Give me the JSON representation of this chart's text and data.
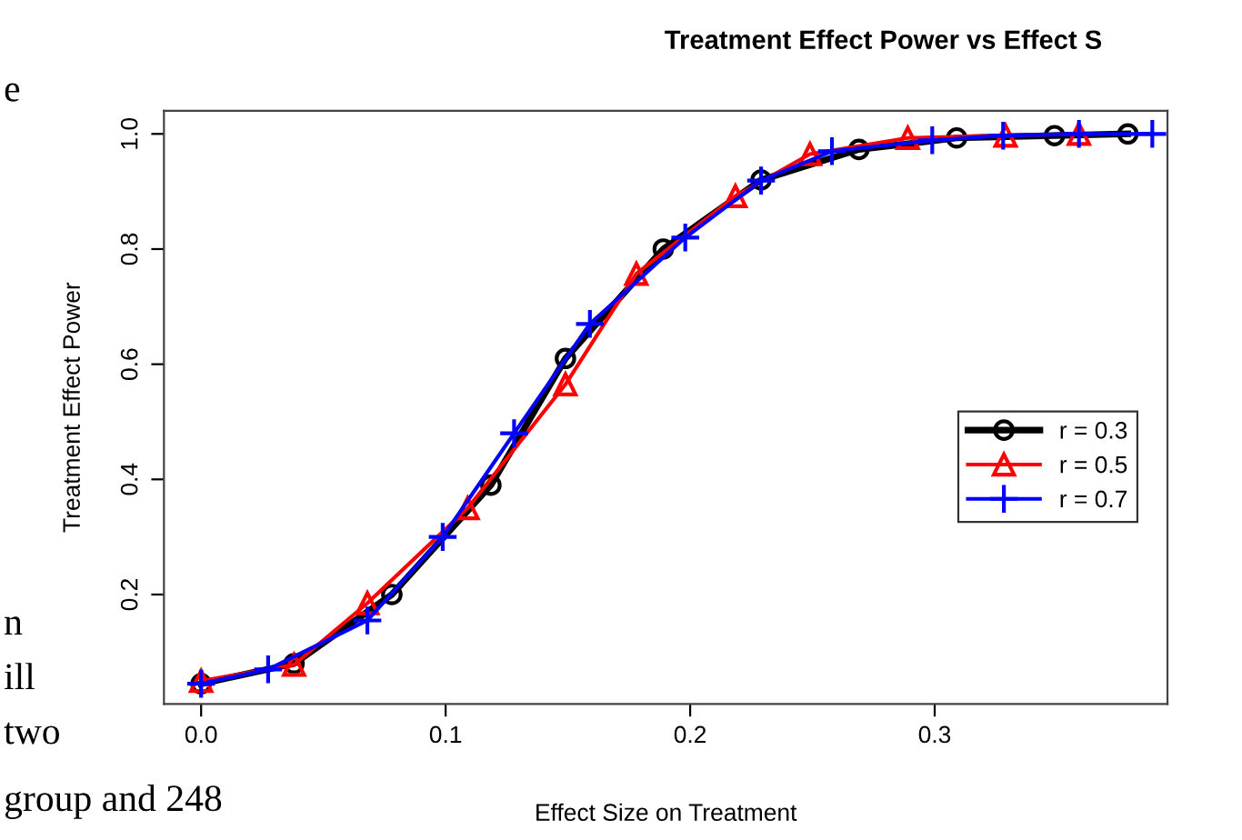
{
  "chart_data": {
    "type": "line",
    "title": "Treatment Effect Power vs Effect S",
    "xlabel": "Effect Size on Treatment",
    "ylabel": "Treatment Effect Power",
    "series": [
      {
        "name": "r = 0.3",
        "color": "#000000",
        "marker": "circle",
        "x": [
          0,
          0.038,
          0.078,
          0.1185,
          0.149,
          0.189,
          0.229,
          0.269,
          0.309,
          0.349,
          0.379
        ],
        "values": [
          0.045,
          0.08,
          0.2,
          0.39,
          0.61,
          0.8,
          0.92,
          0.973,
          0.993,
          0.997,
          1.0
        ]
      },
      {
        "name": "r = 0.5",
        "color": "#ff0000",
        "marker": "triangle",
        "x": [
          0,
          0.038,
          0.068,
          0.109,
          0.149,
          0.178,
          0.2185,
          0.249,
          0.289,
          0.329,
          0.359
        ],
        "values": [
          0.05,
          0.078,
          0.185,
          0.35,
          0.565,
          0.757,
          0.892,
          0.965,
          0.993,
          0.997,
          1.0
        ]
      },
      {
        "name": "r = 0.7",
        "color": "#0000ff",
        "marker": "cross",
        "x": [
          0,
          0.0274,
          0.068,
          0.0988,
          0.128,
          0.159,
          0.198,
          0.229,
          0.258,
          0.299,
          0.328,
          0.359,
          0.389
        ],
        "values": [
          0.045,
          0.07,
          0.155,
          0.3,
          0.48,
          0.67,
          0.82,
          0.919,
          0.97,
          0.989,
          0.997,
          1.0,
          1.0
        ]
      }
    ],
    "xlim": [
      -0.0152,
      0.3952
    ],
    "ylim": [
      0.01,
      1.04
    ],
    "xticks": [
      {
        "value": 0,
        "label": "0.0"
      },
      0.1,
      0.2,
      0.3
    ],
    "yticks": [
      0.2,
      0.4,
      0.6,
      0.8,
      {
        "value": 1,
        "label": "1.0"
      }
    ],
    "legend": "right",
    "grid": false,
    "line_style": "solid",
    "annotations": [
      "e",
      "n",
      "ill",
      "two",
      "group and 248"
    ]
  }
}
